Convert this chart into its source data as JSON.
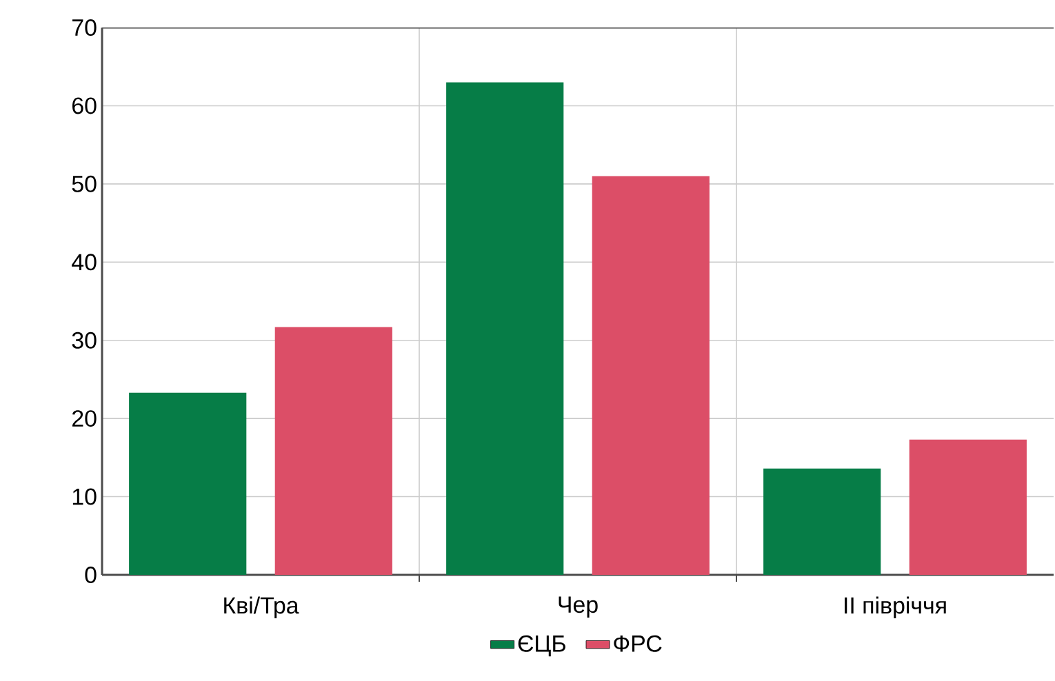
{
  "chart_data": {
    "type": "bar",
    "categories": [
      "Кві/Тра",
      "Чер",
      "ІІ півріччя"
    ],
    "series": [
      {
        "name": "ЄЦБ",
        "color": "#067d47",
        "values": [
          23.3,
          63,
          13.6
        ]
      },
      {
        "name": "ФРС",
        "color": "#dc4e67",
        "values": [
          31.7,
          51,
          17.3
        ]
      }
    ],
    "ylim": [
      0,
      70
    ],
    "yticks": [
      0,
      10,
      20,
      30,
      40,
      50,
      60,
      70
    ],
    "grid": true,
    "legend": "bottom"
  }
}
